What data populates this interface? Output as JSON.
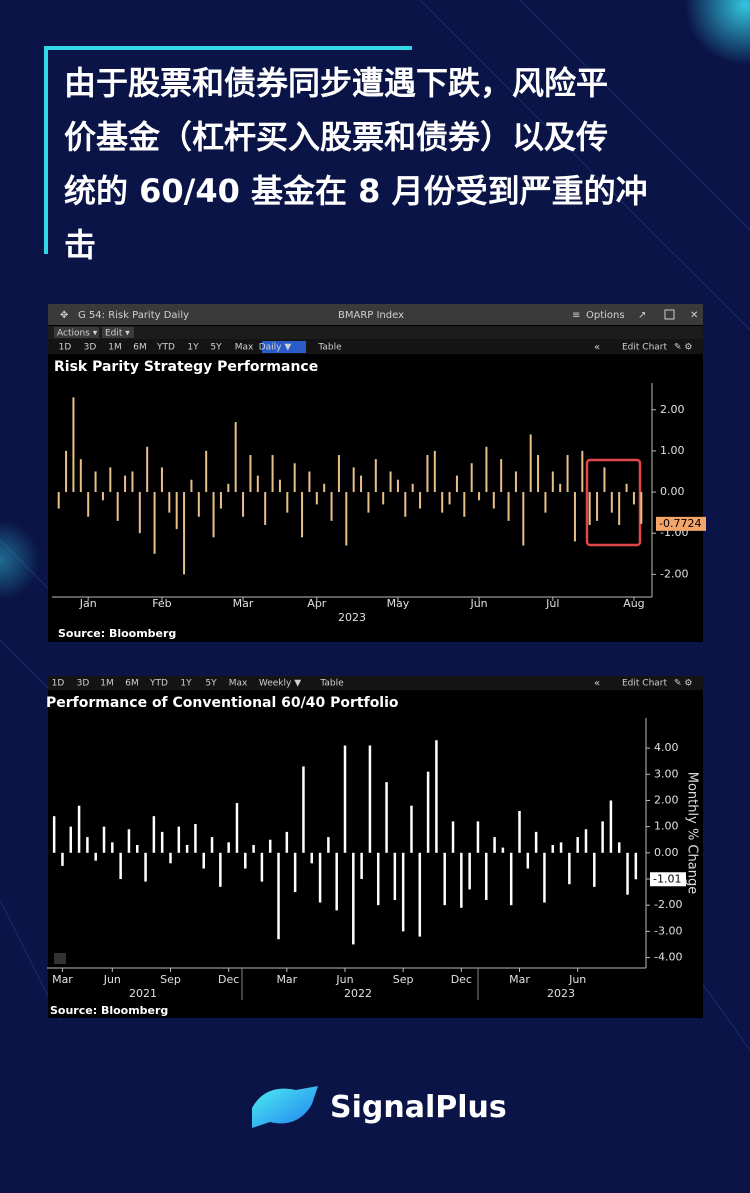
{
  "header": {
    "title_lines": [
      "由于股票和债券同步遭遇下跌，风险平",
      "价基金（杠杆买入股票和债券）以及传",
      "统的 60/40 基金在 8 月份受到严重的冲",
      "击"
    ]
  },
  "panels": [
    {
      "window_title": "G 54: Risk Parity Daily",
      "security": "BMARP Index",
      "options": "Options",
      "menu": [
        "Actions ▾",
        "Edit ▾"
      ],
      "toolbar": [
        "1D",
        "3D",
        "1M",
        "6M",
        "YTD",
        "1Y",
        "5Y",
        "Max",
        "Daily ▼",
        "Table"
      ],
      "edit_chart": "Edit Chart"
    },
    {
      "toolbar": [
        "1D",
        "3D",
        "1M",
        "6M",
        "YTD",
        "1Y",
        "5Y",
        "Max",
        "Weekly ▼",
        "Table"
      ],
      "edit_chart": "Edit Chart"
    }
  ],
  "chart_data": [
    {
      "type": "bar",
      "title": "Risk Parity Strategy Performance",
      "color": "#e8c08a",
      "categories": [
        null,
        null,
        null,
        null,
        "Jan",
        null,
        null,
        null,
        null,
        null,
        null,
        null,
        null,
        null,
        "Feb",
        null,
        null,
        null,
        null,
        null,
        null,
        null,
        null,
        null,
        null,
        "Mar",
        null,
        null,
        null,
        null,
        null,
        null,
        null,
        null,
        null,
        "Apr",
        null,
        null,
        null,
        null,
        null,
        null,
        null,
        null,
        null,
        null,
        "May",
        null,
        null,
        null,
        null,
        null,
        null,
        null,
        null,
        null,
        null,
        "Jun",
        null,
        null,
        null,
        null,
        null,
        null,
        null,
        null,
        null,
        "Jul",
        null,
        null,
        null,
        null,
        null,
        null,
        null,
        null,
        null,
        null,
        "Aug",
        null
      ],
      "values": [
        -0.4,
        1.0,
        2.3,
        0.8,
        -0.6,
        0.5,
        -0.2,
        0.6,
        -0.7,
        0.4,
        0.5,
        -1.0,
        1.1,
        -1.5,
        0.6,
        -0.5,
        -0.9,
        -2.0,
        0.3,
        -0.6,
        1.0,
        -1.1,
        -0.4,
        0.2,
        1.7,
        -0.6,
        0.9,
        0.4,
        -0.8,
        0.9,
        0.3,
        -0.5,
        0.7,
        -1.1,
        0.5,
        -0.3,
        0.2,
        -0.7,
        0.9,
        -1.3,
        0.6,
        0.4,
        -0.5,
        0.8,
        -0.3,
        0.5,
        0.3,
        -0.6,
        0.2,
        -0.4,
        0.9,
        1.0,
        -0.5,
        -0.3,
        0.4,
        -0.6,
        0.7,
        -0.2,
        1.1,
        -0.4,
        0.8,
        -0.7,
        0.5,
        -1.3,
        1.4,
        0.9,
        -0.5,
        0.5,
        0.2,
        0.9,
        -1.2,
        1.0,
        -0.8,
        -0.7,
        0.6,
        -0.5,
        -0.8,
        0.2,
        -0.3,
        -0.7724
      ],
      "ylim": [
        -2.55,
        2.65
      ],
      "yticks": [
        {
          "value": 2,
          "label": "2.00"
        },
        {
          "value": 1,
          "label": "1.00"
        },
        {
          "value": 0,
          "label": "0.00"
        },
        {
          "value": -1,
          "label": "-1.00"
        },
        {
          "value": -2,
          "label": "-2.00"
        }
      ],
      "year_labels": [
        "2023"
      ],
      "source": "Source: Bloomberg"
    },
    {
      "type": "bar",
      "title": "Performance of Conventional 60/40 Portfolio",
      "color": "#ffffff",
      "y_label": "Monthly % Change",
      "categories": [
        null,
        "Mar",
        null,
        null,
        null,
        null,
        null,
        "Jun",
        null,
        null,
        null,
        null,
        null,
        null,
        "Sep",
        null,
        null,
        null,
        null,
        null,
        null,
        "Dec",
        null,
        null,
        null,
        null,
        null,
        null,
        "Mar",
        null,
        null,
        null,
        null,
        null,
        null,
        "Jun",
        null,
        null,
        null,
        null,
        null,
        null,
        "Sep",
        null,
        null,
        null,
        null,
        null,
        null,
        "Dec",
        null,
        null,
        null,
        null,
        null,
        null,
        "Mar",
        null,
        null,
        null,
        null,
        null,
        null,
        "Jun",
        null,
        null,
        null,
        null,
        null,
        null,
        null
      ],
      "values": [
        1.4,
        -0.5,
        1.0,
        1.8,
        0.6,
        -0.3,
        1.0,
        0.4,
        -1.0,
        0.9,
        0.3,
        -1.1,
        1.4,
        0.8,
        -0.4,
        1.0,
        0.3,
        1.1,
        -0.6,
        0.6,
        -1.3,
        0.4,
        1.9,
        -0.6,
        0.3,
        -1.1,
        0.5,
        -3.3,
        0.8,
        -1.5,
        3.3,
        -0.4,
        -1.9,
        0.6,
        -2.2,
        4.1,
        -3.5,
        -1.0,
        4.1,
        -2.0,
        2.7,
        -1.8,
        -3.0,
        1.8,
        -3.2,
        3.1,
        4.3,
        -2.0,
        1.2,
        -2.1,
        -1.4,
        1.2,
        -1.8,
        0.6,
        0.2,
        -2.0,
        1.6,
        -0.6,
        0.8,
        -1.9,
        0.3,
        0.4,
        -1.2,
        0.6,
        0.9,
        -1.3,
        1.2,
        2.0,
        0.4,
        -1.6,
        -1.01
      ],
      "ylim": [
        -4.4,
        5.15
      ],
      "yticks": [
        {
          "value": 4,
          "label": "4.00"
        },
        {
          "value": 3,
          "label": "3.00"
        },
        {
          "value": 2,
          "label": "2.00"
        },
        {
          "value": 1,
          "label": "1.00"
        },
        {
          "value": 0,
          "label": "0.00"
        },
        {
          "value": -1,
          "label": "-1.00"
        },
        {
          "value": -2,
          "label": "-2.00"
        },
        {
          "value": -3,
          "label": "-3.00"
        },
        {
          "value": -4,
          "label": "-4.00"
        }
      ],
      "year_labels": [
        "2021",
        "2022",
        "2023"
      ],
      "source": "Source: Bloomberg"
    }
  ],
  "brand": "SignalPlus"
}
